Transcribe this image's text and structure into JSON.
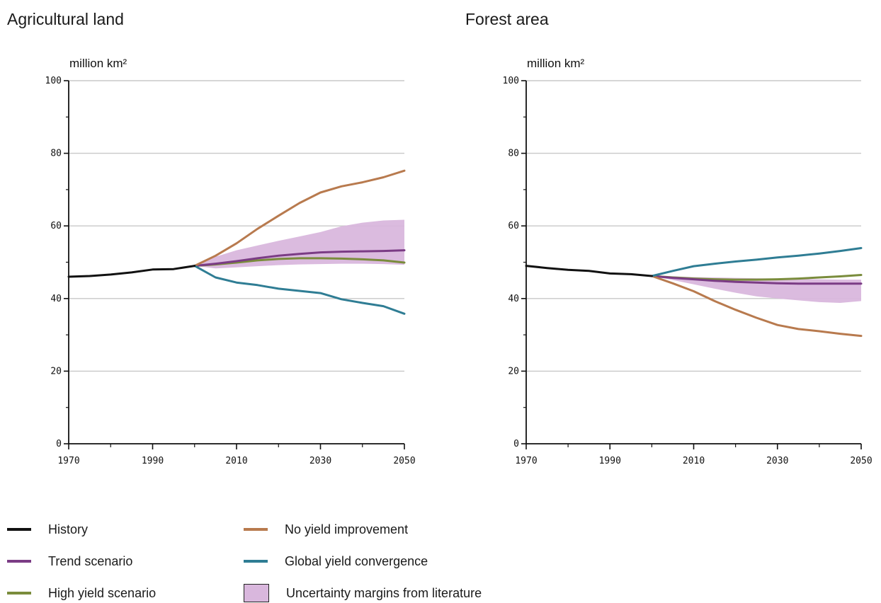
{
  "chart_data": [
    {
      "type": "line",
      "title": "Agricultural land",
      "ylabel": "million km²",
      "xlim": [
        1970,
        2050
      ],
      "ylim": [
        0,
        100
      ],
      "x_ticks": [
        "1970",
        "1990",
        "2010",
        "2030",
        "2050"
      ],
      "y_ticks": [
        "0",
        "20",
        "40",
        "60",
        "80",
        "100"
      ],
      "grid": true,
      "series": [
        {
          "name": "History",
          "color": "#111111",
          "x": [
            1970,
            1975,
            1980,
            1985,
            1990,
            1995,
            2000
          ],
          "y": [
            46,
            46.2,
            46.6,
            47.2,
            48,
            48.1,
            49
          ]
        },
        {
          "name": "Trend scenario",
          "color": "#7b3c85",
          "x": [
            2000,
            2005,
            2010,
            2015,
            2020,
            2025,
            2030,
            2035,
            2040,
            2045,
            2050
          ],
          "y": [
            49,
            49.6,
            50.3,
            51.1,
            51.8,
            52.3,
            52.7,
            52.9,
            53.0,
            53.1,
            53.3
          ]
        },
        {
          "name": "High yield scenario",
          "color": "#7a8c3c",
          "x": [
            2000,
            2005,
            2010,
            2015,
            2020,
            2025,
            2030,
            2035,
            2040,
            2045,
            2050
          ],
          "y": [
            49,
            49.4,
            49.9,
            50.5,
            50.9,
            51.1,
            51.1,
            51.0,
            50.8,
            50.5,
            49.9
          ]
        },
        {
          "name": "No yield improvement",
          "color": "#b87a4e",
          "x": [
            2000,
            2005,
            2010,
            2015,
            2020,
            2025,
            2030,
            2035,
            2040,
            2045,
            2050
          ],
          "y": [
            49,
            51.8,
            55.2,
            59.2,
            62.8,
            66.3,
            69.2,
            70.9,
            72.0,
            73.4,
            75.2
          ]
        },
        {
          "name": "Global yield convergence",
          "color": "#2f7d94",
          "x": [
            2000,
            2005,
            2010,
            2015,
            2020,
            2025,
            2030,
            2035,
            2040,
            2045,
            2050
          ],
          "y": [
            49,
            45.8,
            44.4,
            43.7,
            42.7,
            42.1,
            41.5,
            39.8,
            38.8,
            37.9,
            35.8
          ]
        }
      ],
      "uncertainty": {
        "name": "Uncertainty margins from literature",
        "color": "#d9b7dd",
        "x": [
          2000,
          2005,
          2010,
          2015,
          2020,
          2025,
          2030,
          2035,
          2040,
          2045,
          2050
        ],
        "upper": [
          49,
          51.5,
          53.3,
          54.6,
          55.9,
          57.1,
          58.3,
          59.9,
          60.9,
          61.5,
          61.7
        ],
        "lower": [
          49,
          48.3,
          48.6,
          48.9,
          49.2,
          49.4,
          49.5,
          49.6,
          49.6,
          49.5,
          49.3
        ]
      }
    },
    {
      "type": "line",
      "title": "Forest area",
      "ylabel": "million km²",
      "xlim": [
        1970,
        2050
      ],
      "ylim": [
        0,
        100
      ],
      "x_ticks": [
        "1970",
        "1990",
        "2010",
        "2030",
        "2050"
      ],
      "y_ticks": [
        "0",
        "20",
        "40",
        "60",
        "80",
        "100"
      ],
      "grid": true,
      "series": [
        {
          "name": "History",
          "color": "#111111",
          "x": [
            1970,
            1975,
            1980,
            1985,
            1990,
            1995,
            2000
          ],
          "y": [
            49,
            48.4,
            47.9,
            47.6,
            46.9,
            46.7,
            46.2
          ]
        },
        {
          "name": "Trend scenario",
          "color": "#7b3c85",
          "x": [
            2000,
            2005,
            2010,
            2015,
            2020,
            2025,
            2030,
            2035,
            2040,
            2045,
            2050
          ],
          "y": [
            46.2,
            45.7,
            45.3,
            44.9,
            44.6,
            44.4,
            44.2,
            44.1,
            44.1,
            44.1,
            44.1
          ]
        },
        {
          "name": "High yield scenario",
          "color": "#7a8c3c",
          "x": [
            2000,
            2005,
            2010,
            2015,
            2020,
            2025,
            2030,
            2035,
            2040,
            2045,
            2050
          ],
          "y": [
            46.2,
            45.8,
            45.5,
            45.3,
            45.2,
            45.2,
            45.3,
            45.5,
            45.8,
            46.1,
            46.5
          ]
        },
        {
          "name": "No yield improvement",
          "color": "#b87a4e",
          "x": [
            2000,
            2005,
            2010,
            2015,
            2020,
            2025,
            2030,
            2035,
            2040,
            2045,
            2050
          ],
          "y": [
            46.2,
            44.2,
            42.0,
            39.3,
            36.9,
            34.7,
            32.7,
            31.6,
            31.0,
            30.3,
            29.7
          ]
        },
        {
          "name": "Global yield convergence",
          "color": "#2f7d94",
          "x": [
            2000,
            2005,
            2010,
            2015,
            2020,
            2025,
            2030,
            2035,
            2040,
            2045,
            2050
          ],
          "y": [
            46.2,
            47.6,
            48.9,
            49.6,
            50.2,
            50.7,
            51.3,
            51.8,
            52.4,
            53.1,
            53.9
          ]
        }
      ],
      "uncertainty": {
        "name": "Uncertainty margins from literature",
        "color": "#d9b7dd",
        "x": [
          2000,
          2005,
          2010,
          2015,
          2020,
          2025,
          2030,
          2035,
          2040,
          2045,
          2050
        ],
        "upper": [
          46.2,
          46.1,
          45.9,
          45.8,
          45.7,
          45.6,
          45.5,
          45.4,
          45.3,
          45.2,
          45.2
        ],
        "lower": [
          46.2,
          45.1,
          43.9,
          42.7,
          41.6,
          40.6,
          40.0,
          39.5,
          39.0,
          38.8,
          39.3
        ]
      }
    }
  ],
  "legend": [
    {
      "label": "History",
      "color": "#111111",
      "kind": "line"
    },
    {
      "label": "Trend scenario",
      "color": "#7b3c85",
      "kind": "line"
    },
    {
      "label": "High yield scenario",
      "color": "#7a8c3c",
      "kind": "line"
    },
    {
      "label": "No yield improvement",
      "color": "#b87a4e",
      "kind": "line"
    },
    {
      "label": "Global yield convergence",
      "color": "#2f7d94",
      "kind": "line"
    },
    {
      "label": "Uncertainty margins from literature",
      "color": "#d9b7dd",
      "kind": "box"
    }
  ]
}
